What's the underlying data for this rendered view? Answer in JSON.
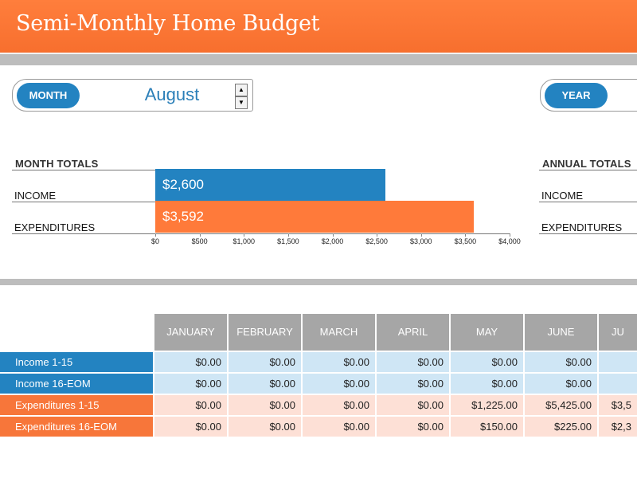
{
  "header": {
    "title": "Semi-Monthly Home Budget"
  },
  "selector": {
    "month_label": "MONTH",
    "month_value": "August",
    "year_label": "YEAR"
  },
  "month_totals": {
    "title": "MONTH TOTALS",
    "rows": [
      {
        "label": "INCOME",
        "value_label": "$2,600"
      },
      {
        "label": "EXPENDITURES",
        "value_label": "$3,592"
      }
    ]
  },
  "annual_totals": {
    "title": "ANNUAL TOTALS",
    "rows": [
      {
        "label": "INCOME"
      },
      {
        "label": "EXPENDITURES"
      }
    ]
  },
  "chart_data": {
    "type": "bar",
    "orientation": "horizontal",
    "categories": [
      "INCOME",
      "EXPENDITURES"
    ],
    "values": [
      2600,
      3592
    ],
    "data_labels": [
      "$2,600",
      "$3,592"
    ],
    "colors": [
      "#2383c1",
      "#ff7a3a"
    ],
    "xlim": [
      0,
      4000
    ],
    "tick_labels": [
      "$0",
      "$500",
      "$1,000",
      "$1,500",
      "$2,000",
      "$2,500",
      "$3,000",
      "$3,500",
      "$4,000"
    ],
    "grid": false,
    "title": "MONTH TOTALS"
  },
  "table": {
    "columns": [
      "JANUARY",
      "FEBRUARY",
      "MARCH",
      "APRIL",
      "MAY",
      "JUNE",
      "JU"
    ],
    "rows": [
      {
        "label": "Income 1-15",
        "kind": "income",
        "values": [
          "$0.00",
          "$0.00",
          "$0.00",
          "$0.00",
          "$0.00",
          "$0.00",
          ""
        ]
      },
      {
        "label": "Income 16-EOM",
        "kind": "income",
        "values": [
          "$0.00",
          "$0.00",
          "$0.00",
          "$0.00",
          "$0.00",
          "$0.00",
          ""
        ]
      },
      {
        "label": "Expenditures 1-15",
        "kind": "expense",
        "values": [
          "$0.00",
          "$0.00",
          "$0.00",
          "$0.00",
          "$1,225.00",
          "$5,425.00",
          "$3,5"
        ]
      },
      {
        "label": "Expenditures 16-EOM",
        "kind": "expense",
        "values": [
          "$0.00",
          "$0.00",
          "$0.00",
          "$0.00",
          "$150.00",
          "$225.00",
          "$2,3"
        ]
      }
    ]
  },
  "colors": {
    "accent_orange": "#f7763a",
    "accent_blue": "#2383c1",
    "income_cell_bg": "#cfe6f5",
    "expense_cell_bg": "#fde0d6",
    "header_gray": "#a6a6a6"
  }
}
